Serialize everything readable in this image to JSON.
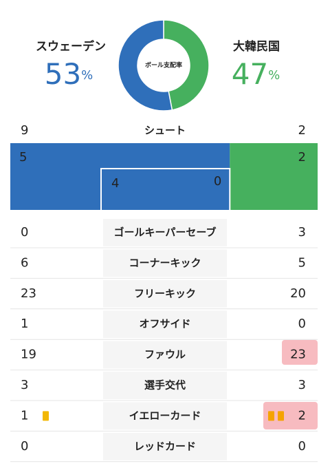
{
  "possession": {
    "label": "ボール支配率",
    "unit": "%",
    "home": {
      "name": "スウェーデン",
      "value": 53,
      "color": "#2f6fba"
    },
    "away": {
      "name": "大韓民国",
      "value": 47,
      "color": "#46b05e"
    }
  },
  "shots": {
    "label": "シュート",
    "home": 9,
    "away": 2,
    "inside": {
      "home": 5,
      "away": 2
    },
    "on_target": {
      "home": 4,
      "away": 0
    }
  },
  "stats": [
    {
      "label": "ゴールキーパーセーブ",
      "home": 0,
      "away": 3
    },
    {
      "label": "コーナーキック",
      "home": 6,
      "away": 5
    },
    {
      "label": "フリーキック",
      "home": 23,
      "away": 20
    },
    {
      "label": "オフサイド",
      "home": 1,
      "away": 0
    },
    {
      "label": "ファウル",
      "home": 19,
      "away": 23
    },
    {
      "label": "選手交代",
      "home": 3,
      "away": 3
    },
    {
      "label": "イエローカード",
      "home": 1,
      "away": 2
    },
    {
      "label": "レッドカード",
      "home": 0,
      "away": 0
    }
  ]
}
